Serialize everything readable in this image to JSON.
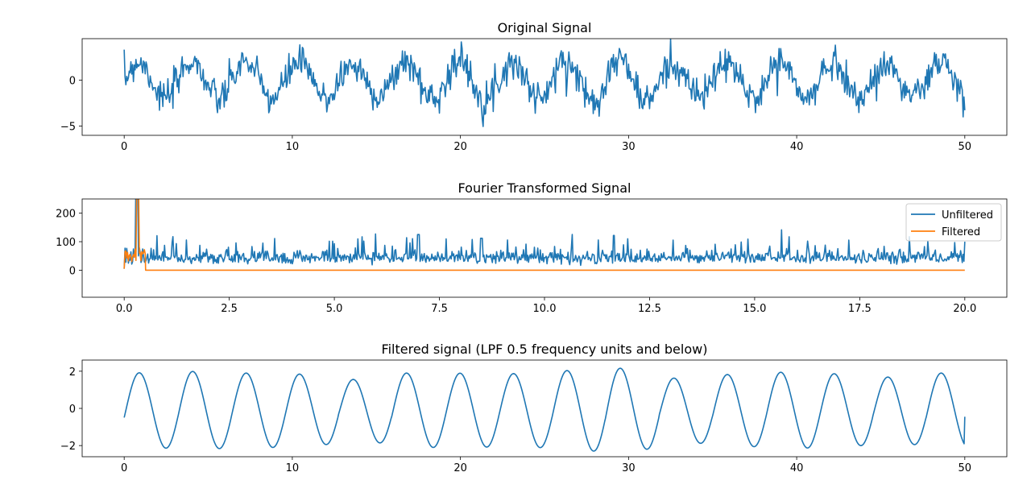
{
  "colors": {
    "blue": "#1f77b4",
    "orange": "#ff7f0e"
  },
  "chart_data": [
    {
      "type": "line",
      "title": "Original Signal",
      "xlim": [
        -2.5,
        52.5
      ],
      "ylim": [
        -6,
        4.5
      ],
      "xticks": [
        0,
        10,
        20,
        30,
        40,
        50
      ],
      "xtick_labels": [
        "0",
        "10",
        "20",
        "30",
        "40",
        "50"
      ],
      "yticks": [
        0,
        -5
      ],
      "ytick_labels": [
        "0",
        "−5"
      ],
      "grid": false,
      "series": [
        {
          "color": "#1f77b4",
          "description": "sinusoid (period ~3.2, amplitude ~2) with added noise, x from 0 to 50",
          "x": [
            0.0,
            0.8,
            1.6,
            2.4,
            3.2,
            4.0,
            4.8,
            5.6,
            6.4,
            7.2,
            8.0,
            8.8,
            9.6,
            10.4,
            11.2,
            12.0,
            12.8,
            13.6,
            14.4,
            15.2,
            16.0,
            16.8,
            17.6,
            18.4,
            19.2,
            20.0,
            20.8,
            21.6,
            22.4,
            23.2,
            24.0,
            24.8,
            25.6,
            26.4,
            27.2,
            28.0,
            28.8,
            29.6,
            30.4,
            31.2,
            32.0,
            32.8,
            33.6,
            34.4,
            35.2,
            36.0,
            36.8,
            37.6,
            38.4,
            39.2,
            40.0,
            40.8,
            41.6,
            42.4,
            43.2,
            44.0,
            44.8,
            45.6,
            46.4,
            47.2,
            48.0,
            48.8,
            49.6,
            50.0
          ],
          "y": [
            0.2,
            2.0,
            1.0,
            -1.5,
            1.5,
            2.5,
            -1.5,
            -2.5,
            1.5,
            2.2,
            -1.5,
            -2.2,
            1.8,
            2.0,
            -1.8,
            -2.0,
            1.5,
            2.0,
            -1.5,
            -2.0,
            1.8,
            2.0,
            -2.0,
            -1.8,
            1.8,
            2.0,
            -2.0,
            -2.0,
            1.5,
            2.2,
            -1.8,
            -2.0,
            1.8,
            2.0,
            -1.8,
            -2.0,
            2.2,
            1.5,
            -2.0,
            -1.5,
            1.8,
            1.5,
            -2.0,
            -1.8,
            2.0,
            1.5,
            -2.0,
            -2.0,
            2.0,
            1.5,
            -2.0,
            -1.5,
            2.0,
            1.5,
            -2.0,
            -1.5,
            1.8,
            1.5,
            -2.0,
            -1.5,
            1.8,
            -0.5,
            -1.5,
            -1.0
          ]
        }
      ]
    },
    {
      "type": "line",
      "title": "Fourier Transformed Signal",
      "xlim": [
        -1,
        21
      ],
      "ylim": [
        -95,
        250
      ],
      "xticks": [
        0,
        2.5,
        5,
        7.5,
        10,
        12.5,
        15,
        17.5,
        20
      ],
      "xtick_labels": [
        "0.0",
        "2.5",
        "5.0",
        "7.5",
        "10.0",
        "12.5",
        "15.0",
        "17.5",
        "20.0"
      ],
      "yticks": [
        0,
        100,
        200
      ],
      "ytick_labels": [
        "0",
        "100",
        "200"
      ],
      "legend": "top-right",
      "grid": false,
      "series": [
        {
          "name": "Unfiltered",
          "color": "#1f77b4",
          "description": "magnitude spectrum: spike ~250+ near x=0.31, noise floor ~10–80 with occasional peaks up to ~125 from x=0 to 20",
          "x": [
            0.0,
            0.2,
            0.31,
            0.5,
            1.0,
            1.5,
            2.0,
            3.0,
            4.0,
            5.0,
            6.0,
            7.0,
            8.0,
            9.0,
            10.0,
            11.0,
            11.65,
            12.0,
            13.0,
            14.0,
            15.0,
            16.0,
            17.0,
            18.0,
            19.0,
            20.0
          ],
          "y": [
            5,
            60,
            260,
            20,
            40,
            60,
            45,
            35,
            45,
            40,
            45,
            125,
            40,
            45,
            35,
            40,
            120,
            40,
            35,
            40,
            40,
            45,
            40,
            35,
            40,
            100
          ]
        },
        {
          "name": "Filtered",
          "color": "#ff7f0e",
          "description": "same spectrum kept below 0.5, zero above",
          "x": [
            0.0,
            0.1,
            0.2,
            0.31,
            0.4,
            0.5,
            0.51,
            20.0
          ],
          "y": [
            5,
            70,
            40,
            260,
            70,
            20,
            0,
            0
          ]
        }
      ]
    },
    {
      "type": "line",
      "title": "Filtered signal (LPF 0.5 frequency units and below)",
      "xlim": [
        -2.5,
        52.5
      ],
      "ylim": [
        -2.6,
        2.6
      ],
      "xticks": [
        0,
        10,
        20,
        30,
        40,
        50
      ],
      "xtick_labels": [
        "0",
        "10",
        "20",
        "30",
        "40",
        "50"
      ],
      "yticks": [
        2,
        0,
        -2
      ],
      "ytick_labels": [
        "2",
        "0",
        "−2"
      ],
      "grid": false,
      "series": [
        {
          "color": "#1f77b4",
          "description": "smooth sinusoid, period ~3.18, amplitude ~1.5–2.4",
          "amplitudes": [
            2.0,
            2.1,
            2.0,
            2.0,
            1.6,
            2.0,
            2.0,
            1.95,
            2.1,
            2.35,
            1.7,
            1.9,
            2.05,
            2.0,
            1.75,
            2.0
          ]
        }
      ]
    }
  ]
}
